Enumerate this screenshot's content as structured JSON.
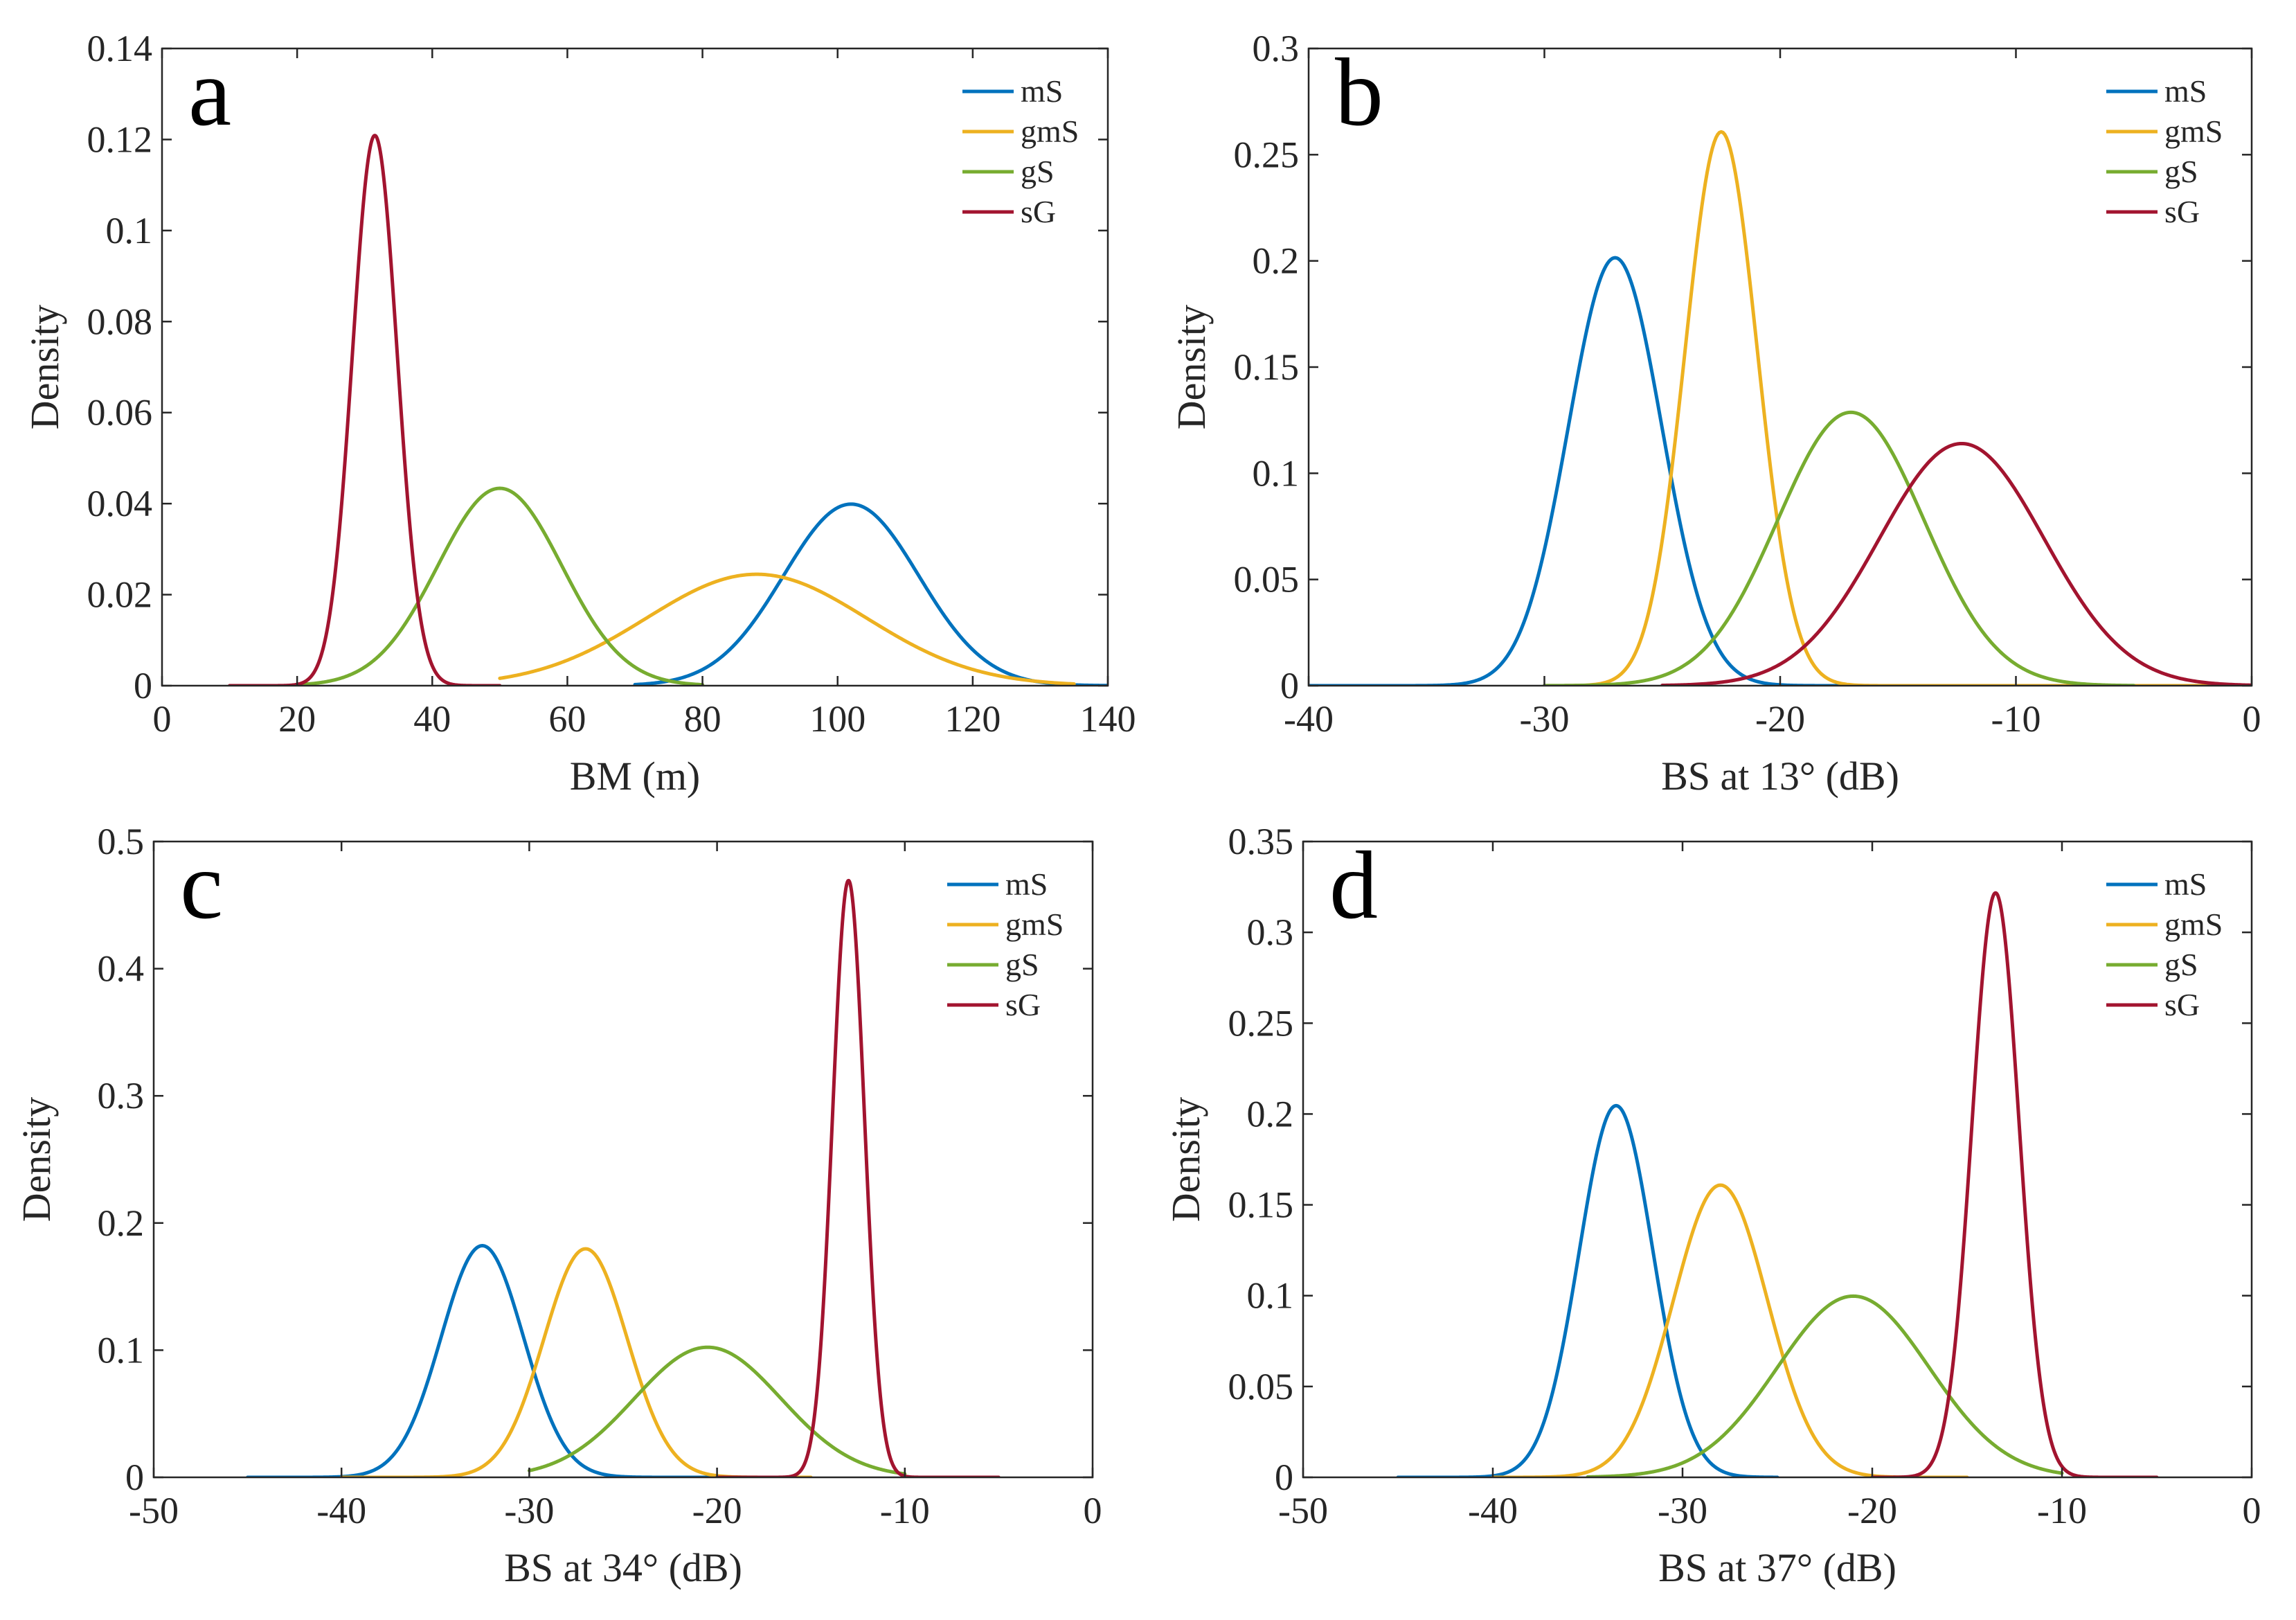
{
  "series_colors": {
    "mS": "#0072BD",
    "gmS": "#EDB120",
    "gS": "#77AC30",
    "sG": "#A2142F"
  },
  "chart_data": [
    {
      "panel": "a",
      "type": "line",
      "xlabel": "BM (m)",
      "ylabel": "Density",
      "xlim": [
        0,
        140
      ],
      "ylim": [
        0,
        0.14
      ],
      "xticks": [
        0,
        20,
        40,
        60,
        80,
        100,
        120,
        140
      ],
      "yticks": [
        0,
        0.02,
        0.04,
        0.06,
        0.08,
        0.1,
        0.12,
        0.14
      ],
      "legend_position": "top-right",
      "series": [
        {
          "name": "mS",
          "mean": 102,
          "sd": 10,
          "x_range": [
            70,
            140
          ]
        },
        {
          "name": "gmS",
          "mean": 88,
          "sd": 16.3,
          "x_range": [
            50,
            135
          ]
        },
        {
          "name": "gS",
          "mean": 50,
          "sd": 9.2,
          "x_range": [
            20,
            80
          ]
        },
        {
          "name": "sG",
          "mean": 31.5,
          "sd": 3.3,
          "x_range": [
            10,
            50
          ]
        }
      ]
    },
    {
      "panel": "b",
      "type": "line",
      "xlabel": "BS at 13° (dB)",
      "ylabel": "Density",
      "xlim": [
        -40,
        0
      ],
      "ylim": [
        0,
        0.3
      ],
      "xticks": [
        -40,
        -30,
        -20,
        -10,
        0
      ],
      "yticks": [
        0,
        0.05,
        0.1,
        0.15,
        0.2,
        0.25,
        0.3
      ],
      "legend_position": "top-right",
      "series": [
        {
          "name": "mS",
          "mean": -27,
          "sd": 1.98,
          "x_range": [
            -40,
            -15
          ]
        },
        {
          "name": "gmS",
          "mean": -22.5,
          "sd": 1.53,
          "x_range": [
            -30,
            0
          ]
        },
        {
          "name": "gS",
          "mean": -17,
          "sd": 3.1,
          "x_range": [
            -30,
            -5
          ]
        },
        {
          "name": "sG",
          "mean": -12.3,
          "sd": 3.5,
          "x_range": [
            -25,
            0
          ]
        }
      ]
    },
    {
      "panel": "c",
      "type": "line",
      "xlabel": "BS at 34° (dB)",
      "ylabel": "Density",
      "xlim": [
        -50,
        0
      ],
      "ylim": [
        0,
        0.5
      ],
      "xticks": [
        -50,
        -40,
        -30,
        -20,
        -10,
        0
      ],
      "yticks": [
        0,
        0.1,
        0.2,
        0.3,
        0.4,
        0.5
      ],
      "legend_position": "top-right",
      "series": [
        {
          "name": "mS",
          "mean": -32.5,
          "sd": 2.19,
          "x_range": [
            -45,
            -20
          ]
        },
        {
          "name": "gmS",
          "mean": -27,
          "sd": 2.22,
          "x_range": [
            -40,
            -15
          ]
        },
        {
          "name": "gS",
          "mean": -20.5,
          "sd": 3.9,
          "x_range": [
            -30,
            -10
          ]
        },
        {
          "name": "sG",
          "mean": -13,
          "sd": 0.85,
          "x_range": [
            -20,
            -5
          ]
        }
      ]
    },
    {
      "panel": "d",
      "type": "line",
      "xlabel": "BS at 37° (dB)",
      "ylabel": "Density",
      "xlim": [
        -50,
        0
      ],
      "ylim": [
        0,
        0.35
      ],
      "xticks": [
        -50,
        -40,
        -30,
        -20,
        -10,
        0
      ],
      "yticks": [
        0,
        0.05,
        0.1,
        0.15,
        0.2,
        0.25,
        0.3,
        0.35
      ],
      "legend_position": "top-right",
      "series": [
        {
          "name": "mS",
          "mean": -33.5,
          "sd": 1.95,
          "x_range": [
            -45,
            -25
          ]
        },
        {
          "name": "gmS",
          "mean": -28,
          "sd": 2.48,
          "x_range": [
            -40,
            -15
          ]
        },
        {
          "name": "gS",
          "mean": -21,
          "sd": 4.0,
          "x_range": [
            -35,
            -10
          ]
        },
        {
          "name": "sG",
          "mean": -13.5,
          "sd": 1.24,
          "x_range": [
            -20,
            -5
          ]
        }
      ]
    }
  ]
}
